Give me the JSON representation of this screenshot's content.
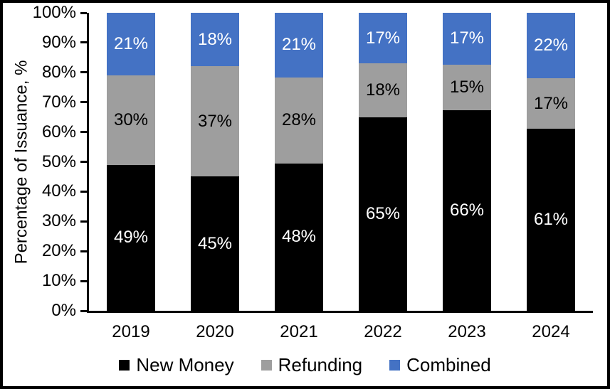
{
  "chart_data": {
    "type": "bar",
    "variant": "stacked-percent",
    "title": "",
    "xlabel": "",
    "ylabel": "Percentage of Issuance, %",
    "ylim": [
      0,
      100
    ],
    "ytick_step": 10,
    "ytick_labels": [
      "0%",
      "10%",
      "20%",
      "30%",
      "40%",
      "50%",
      "60%",
      "70%",
      "80%",
      "90%",
      "100%"
    ],
    "value_suffix": "%",
    "grid": false,
    "legend_position": "bottom",
    "categories": [
      "2019",
      "2020",
      "2021",
      "2022",
      "2023",
      "2024"
    ],
    "series": [
      {
        "name": "New Money",
        "color": "#000000",
        "label_color": "#FFFFFF",
        "values": [
          49,
          45,
          48,
          65,
          66,
          61
        ]
      },
      {
        "name": "Refunding",
        "color": "#9E9E9E",
        "label_color": "#000000",
        "values": [
          30,
          37,
          28,
          18,
          15,
          17
        ]
      },
      {
        "name": "Combined",
        "color": "#4472C4",
        "label_color": "#FFFFFF",
        "values": [
          21,
          18,
          21,
          17,
          17,
          22
        ]
      }
    ],
    "colors": {
      "new_money": "#000000",
      "refunding": "#9E9E9E",
      "combined": "#4472C4",
      "axis": "#000000",
      "background": "#FFFFFF"
    }
  }
}
